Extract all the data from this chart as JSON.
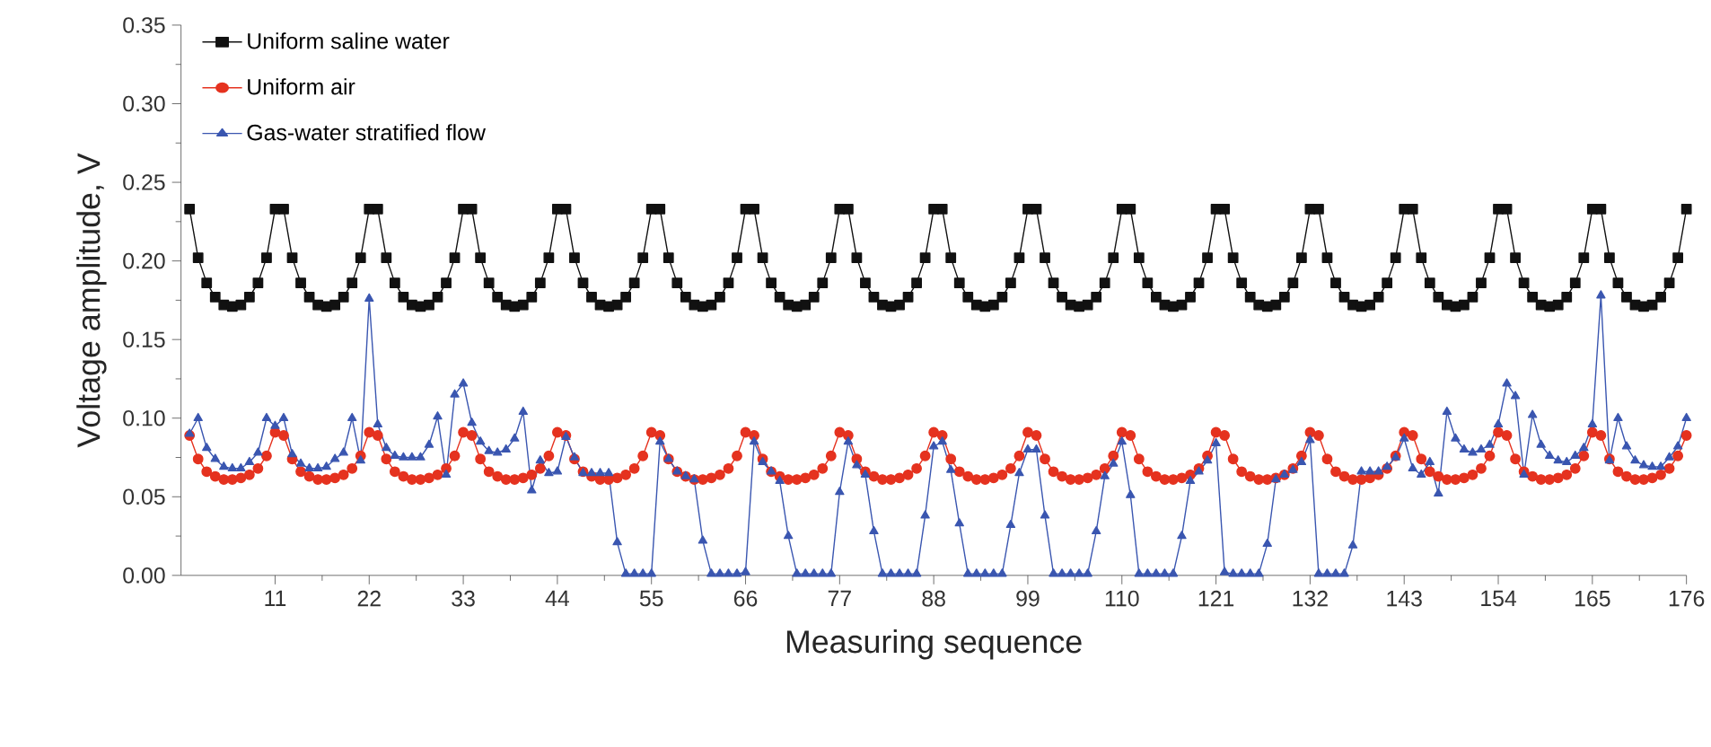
{
  "chart_data": {
    "type": "line",
    "xlabel": "Measuring sequence",
    "ylabel": "Voltage amplitude, V",
    "xlim": [
      0,
      176
    ],
    "xticks": [
      11,
      22,
      33,
      44,
      55,
      66,
      77,
      88,
      99,
      110,
      121,
      132,
      143,
      154,
      165,
      176
    ],
    "ylim": [
      0,
      0.35
    ],
    "yticks": [
      {
        "value": 0,
        "label": "0.00"
      },
      {
        "value": 0.05,
        "label": "0.05"
      },
      {
        "value": 0.1,
        "label": "0.10"
      },
      {
        "value": 0.15,
        "label": "0.15"
      },
      {
        "value": 0.2,
        "label": "0.20"
      },
      {
        "value": 0.25,
        "label": "0.25"
      },
      {
        "value": 0.3,
        "label": "0.30"
      },
      {
        "value": 0.35,
        "label": "0.35"
      }
    ],
    "legend": "top left",
    "line_style": "solid",
    "x": [
      1,
      2,
      3,
      4,
      5,
      6,
      7,
      8,
      9,
      10,
      11,
      12,
      13,
      14,
      15,
      16,
      17,
      18,
      19,
      20,
      21,
      22,
      23,
      24,
      25,
      26,
      27,
      28,
      29,
      30,
      31,
      32,
      33,
      34,
      35,
      36,
      37,
      38,
      39,
      40,
      41,
      42,
      43,
      44,
      45,
      46,
      47,
      48,
      49,
      50,
      51,
      52,
      53,
      54,
      55,
      56,
      57,
      58,
      59,
      60,
      61,
      62,
      63,
      64,
      65,
      66,
      67,
      68,
      69,
      70,
      71,
      72,
      73,
      74,
      75,
      76,
      77,
      78,
      79,
      80,
      81,
      82,
      83,
      84,
      85,
      86,
      87,
      88,
      89,
      90,
      91,
      92,
      93,
      94,
      95,
      96,
      97,
      98,
      99,
      100,
      101,
      102,
      103,
      104,
      105,
      106,
      107,
      108,
      109,
      110,
      111,
      112,
      113,
      114,
      115,
      116,
      117,
      118,
      119,
      120,
      121,
      122,
      123,
      124,
      125,
      126,
      127,
      128,
      129,
      130,
      131,
      132,
      133,
      134,
      135,
      136,
      137,
      138,
      139,
      140,
      141,
      142,
      143,
      144,
      145,
      146,
      147,
      148,
      149,
      150,
      151,
      152,
      153,
      154,
      155,
      156,
      157,
      158,
      159,
      160,
      161,
      162,
      163,
      164,
      165,
      166,
      167,
      168,
      169,
      170,
      171,
      172,
      173,
      174,
      175,
      176
    ],
    "series": [
      {
        "name": "Uniform saline water",
        "color": "#111111",
        "marker": "square",
        "values": [
          0.233,
          0.202,
          0.186,
          0.177,
          0.172,
          0.171,
          0.172,
          0.177,
          0.186,
          0.202,
          0.233,
          0.233,
          0.202,
          0.186,
          0.177,
          0.172,
          0.171,
          0.172,
          0.177,
          0.186,
          0.202,
          0.233,
          0.233,
          0.202,
          0.186,
          0.177,
          0.172,
          0.171,
          0.172,
          0.177,
          0.186,
          0.202,
          0.233,
          0.233,
          0.202,
          0.186,
          0.177,
          0.172,
          0.171,
          0.172,
          0.177,
          0.186,
          0.202,
          0.233,
          0.233,
          0.202,
          0.186,
          0.177,
          0.172,
          0.171,
          0.172,
          0.177,
          0.186,
          0.202,
          0.233,
          0.233,
          0.202,
          0.186,
          0.177,
          0.172,
          0.171,
          0.172,
          0.177,
          0.186,
          0.202,
          0.233,
          0.233,
          0.202,
          0.186,
          0.177,
          0.172,
          0.171,
          0.172,
          0.177,
          0.186,
          0.202,
          0.233,
          0.233,
          0.202,
          0.186,
          0.177,
          0.172,
          0.171,
          0.172,
          0.177,
          0.186,
          0.202,
          0.233,
          0.233,
          0.202,
          0.186,
          0.177,
          0.172,
          0.171,
          0.172,
          0.177,
          0.186,
          0.202,
          0.233,
          0.233,
          0.202,
          0.186,
          0.177,
          0.172,
          0.171,
          0.172,
          0.177,
          0.186,
          0.202,
          0.233,
          0.233,
          0.202,
          0.186,
          0.177,
          0.172,
          0.171,
          0.172,
          0.177,
          0.186,
          0.202,
          0.233,
          0.233,
          0.202,
          0.186,
          0.177,
          0.172,
          0.171,
          0.172,
          0.177,
          0.186,
          0.202,
          0.233,
          0.233,
          0.202,
          0.186,
          0.177,
          0.172,
          0.171,
          0.172,
          0.177,
          0.186,
          0.202,
          0.233,
          0.233,
          0.202,
          0.186,
          0.177,
          0.172,
          0.171,
          0.172,
          0.177,
          0.186,
          0.202,
          0.233,
          0.233,
          0.202,
          0.186,
          0.177,
          0.172,
          0.171,
          0.172,
          0.177,
          0.186,
          0.202,
          0.233,
          0.233,
          0.202,
          0.186,
          0.177,
          0.172,
          0.171,
          0.172,
          0.177,
          0.186,
          0.202,
          0.233
        ]
      },
      {
        "name": "Uniform air",
        "color": "#e5321f",
        "marker": "circle",
        "values": [
          0.089,
          0.074,
          0.066,
          0.063,
          0.061,
          0.061,
          0.062,
          0.064,
          0.068,
          0.076,
          0.091,
          0.089,
          0.074,
          0.066,
          0.063,
          0.061,
          0.061,
          0.062,
          0.064,
          0.068,
          0.076,
          0.091,
          0.089,
          0.074,
          0.066,
          0.063,
          0.061,
          0.061,
          0.062,
          0.064,
          0.068,
          0.076,
          0.091,
          0.089,
          0.074,
          0.066,
          0.063,
          0.061,
          0.061,
          0.062,
          0.064,
          0.068,
          0.076,
          0.091,
          0.089,
          0.074,
          0.066,
          0.063,
          0.061,
          0.061,
          0.062,
          0.064,
          0.068,
          0.076,
          0.091,
          0.089,
          0.074,
          0.066,
          0.063,
          0.061,
          0.061,
          0.062,
          0.064,
          0.068,
          0.076,
          0.091,
          0.089,
          0.074,
          0.066,
          0.063,
          0.061,
          0.061,
          0.062,
          0.064,
          0.068,
          0.076,
          0.091,
          0.089,
          0.074,
          0.066,
          0.063,
          0.061,
          0.061,
          0.062,
          0.064,
          0.068,
          0.076,
          0.091,
          0.089,
          0.074,
          0.066,
          0.063,
          0.061,
          0.061,
          0.062,
          0.064,
          0.068,
          0.076,
          0.091,
          0.089,
          0.074,
          0.066,
          0.063,
          0.061,
          0.061,
          0.062,
          0.064,
          0.068,
          0.076,
          0.091,
          0.089,
          0.074,
          0.066,
          0.063,
          0.061,
          0.061,
          0.062,
          0.064,
          0.068,
          0.076,
          0.091,
          0.089,
          0.074,
          0.066,
          0.063,
          0.061,
          0.061,
          0.062,
          0.064,
          0.068,
          0.076,
          0.091,
          0.089,
          0.074,
          0.066,
          0.063,
          0.061,
          0.061,
          0.062,
          0.064,
          0.068,
          0.076,
          0.091,
          0.089,
          0.074,
          0.066,
          0.063,
          0.061,
          0.061,
          0.062,
          0.064,
          0.068,
          0.076,
          0.091,
          0.089,
          0.074,
          0.066,
          0.063,
          0.061,
          0.061,
          0.062,
          0.064,
          0.068,
          0.076,
          0.091,
          0.089,
          0.074,
          0.066,
          0.063,
          0.061,
          0.061,
          0.062,
          0.064,
          0.068,
          0.076,
          0.089
        ]
      },
      {
        "name": "Gas-water stratified flow",
        "color": "#3a56b0",
        "marker": "triangle",
        "values": [
          0.09,
          0.1,
          0.081,
          0.074,
          0.069,
          0.068,
          0.068,
          0.072,
          0.078,
          0.1,
          0.095,
          0.1,
          0.077,
          0.071,
          0.068,
          0.068,
          0.069,
          0.074,
          0.078,
          0.1,
          0.073,
          0.176,
          0.096,
          0.081,
          0.076,
          0.075,
          0.075,
          0.075,
          0.083,
          0.101,
          0.064,
          0.115,
          0.122,
          0.097,
          0.085,
          0.079,
          0.078,
          0.08,
          0.087,
          0.104,
          0.054,
          0.073,
          0.065,
          0.066,
          0.088,
          0.075,
          0.065,
          0.065,
          0.065,
          0.065,
          0.021,
          0.001,
          0.001,
          0.001,
          0.001,
          0.085,
          0.074,
          0.066,
          0.063,
          0.061,
          0.022,
          0.001,
          0.001,
          0.001,
          0.001,
          0.002,
          0.085,
          0.072,
          0.066,
          0.06,
          0.025,
          0.001,
          0.001,
          0.001,
          0.001,
          0.001,
          0.053,
          0.085,
          0.07,
          0.064,
          0.028,
          0.001,
          0.001,
          0.001,
          0.001,
          0.001,
          0.038,
          0.082,
          0.085,
          0.067,
          0.033,
          0.001,
          0.001,
          0.001,
          0.001,
          0.001,
          0.032,
          0.065,
          0.08,
          0.08,
          0.038,
          0.001,
          0.001,
          0.001,
          0.001,
          0.001,
          0.028,
          0.063,
          0.071,
          0.085,
          0.051,
          0.001,
          0.001,
          0.001,
          0.001,
          0.001,
          0.025,
          0.06,
          0.066,
          0.073,
          0.084,
          0.002,
          0.001,
          0.001,
          0.001,
          0.001,
          0.02,
          0.061,
          0.064,
          0.067,
          0.072,
          0.086,
          0.001,
          0.001,
          0.001,
          0.001,
          0.019,
          0.066,
          0.066,
          0.066,
          0.069,
          0.075,
          0.087,
          0.068,
          0.064,
          0.072,
          0.052,
          0.104,
          0.087,
          0.08,
          0.078,
          0.08,
          0.083,
          0.096,
          0.122,
          0.114,
          0.064,
          0.102,
          0.083,
          0.076,
          0.073,
          0.072,
          0.076,
          0.081,
          0.096,
          0.178,
          0.073,
          0.1,
          0.082,
          0.073,
          0.07,
          0.069,
          0.069,
          0.075,
          0.082,
          0.1
        ]
      }
    ]
  }
}
